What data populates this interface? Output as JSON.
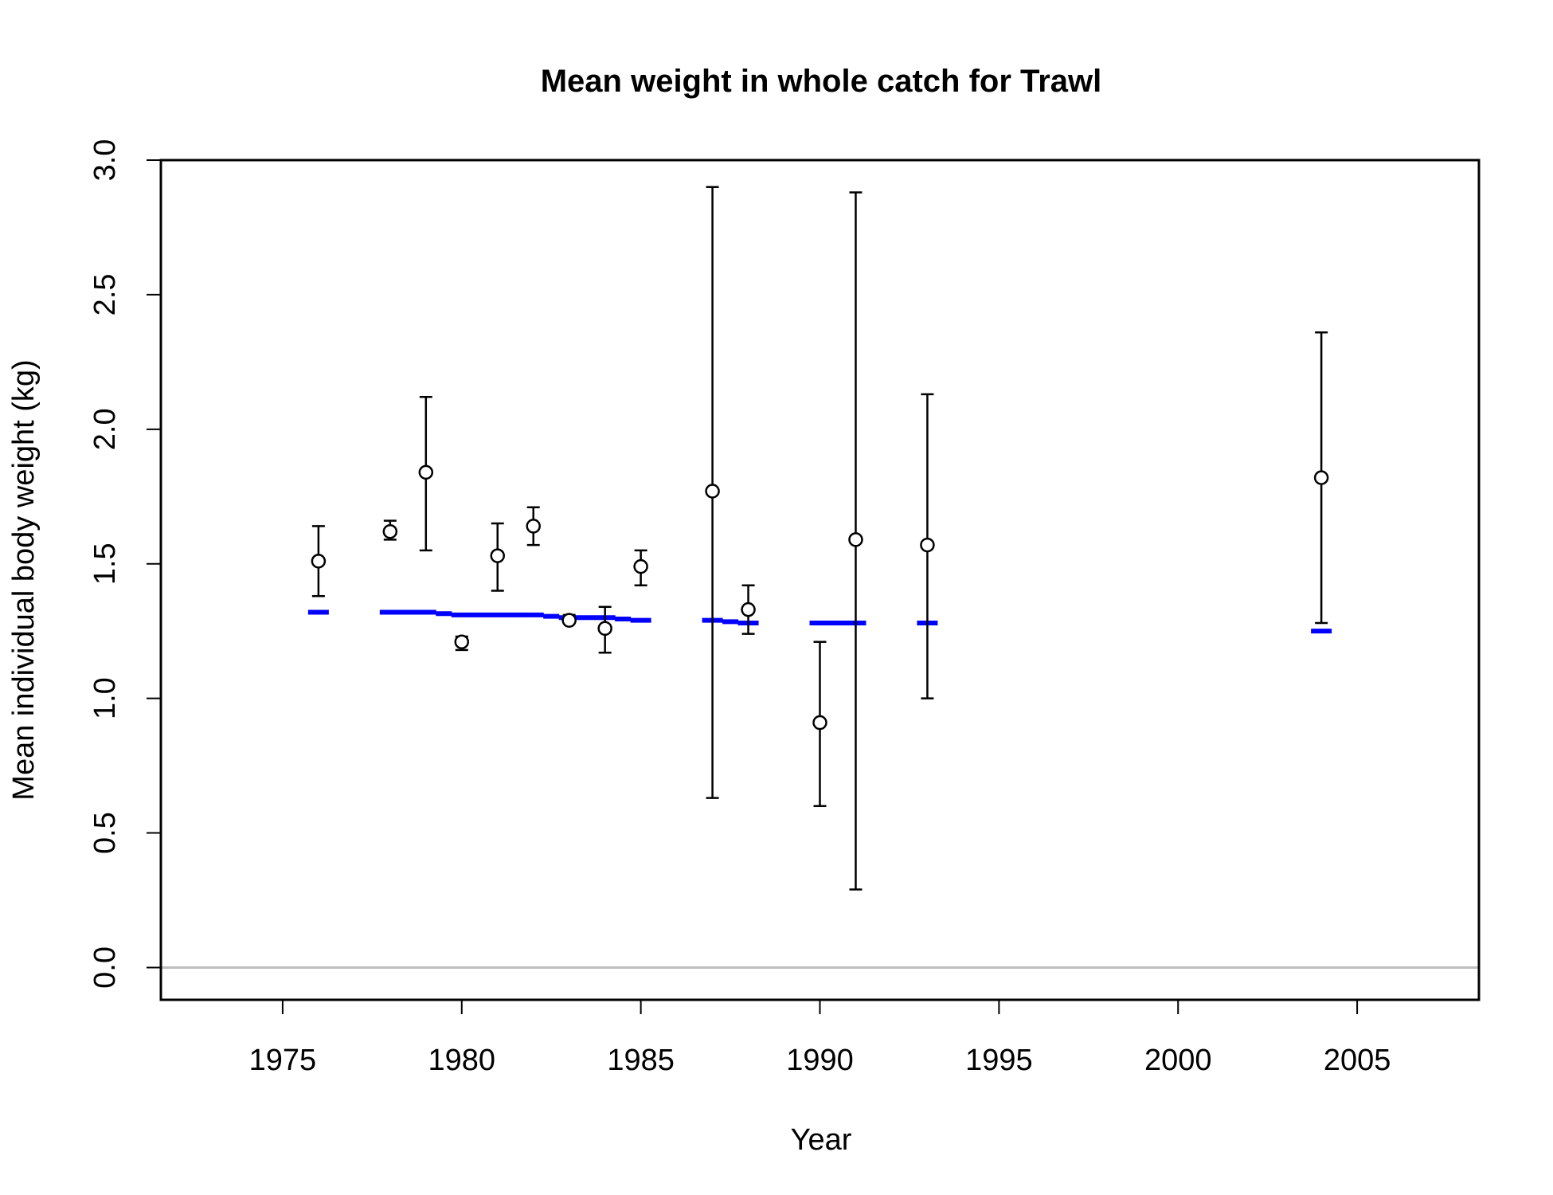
{
  "chart_data": {
    "type": "scatter",
    "title": "Mean weight in whole catch for Trawl",
    "xlabel": "Year",
    "ylabel": "Mean individual body weight (kg)",
    "xlim": [
      1971.6,
      2008.4
    ],
    "ylim": [
      -0.12,
      3.0
    ],
    "x_ticks": [
      "1975",
      "1980",
      "1985",
      "1990",
      "1995",
      "2000",
      "2005"
    ],
    "y_ticks": [
      "0.0",
      "0.5",
      "1.0",
      "1.5",
      "2.0",
      "2.5",
      "3.0"
    ],
    "reference_line": {
      "y": 0.0,
      "color": "#bebebe"
    },
    "series": [
      {
        "kind": "observed",
        "color": "#000000",
        "points": [
          {
            "x": 1976,
            "y": 1.51,
            "lower": 1.38,
            "upper": 1.64
          },
          {
            "x": 1978,
            "y": 1.62,
            "lower": 1.59,
            "upper": 1.66
          },
          {
            "x": 1979,
            "y": 1.84,
            "lower": 1.55,
            "upper": 2.12
          },
          {
            "x": 1980,
            "y": 1.21,
            "lower": 1.18,
            "upper": 1.23
          },
          {
            "x": 1981,
            "y": 1.53,
            "lower": 1.4,
            "upper": 1.65
          },
          {
            "x": 1982,
            "y": 1.64,
            "lower": 1.57,
            "upper": 1.71
          },
          {
            "x": 1983,
            "y": 1.29,
            "lower": 1.28,
            "upper": 1.31
          },
          {
            "x": 1984,
            "y": 1.26,
            "lower": 1.17,
            "upper": 1.34
          },
          {
            "x": 1985,
            "y": 1.49,
            "lower": 1.42,
            "upper": 1.55
          },
          {
            "x": 1987,
            "y": 1.77,
            "lower": 0.63,
            "upper": 2.9
          },
          {
            "x": 1988,
            "y": 1.33,
            "lower": 1.24,
            "upper": 1.42
          },
          {
            "x": 1990,
            "y": 0.91,
            "lower": 0.6,
            "upper": 1.21
          },
          {
            "x": 1991,
            "y": 1.59,
            "lower": 0.29,
            "upper": 2.88
          },
          {
            "x": 1993,
            "y": 1.57,
            "lower": 1.0,
            "upper": 2.13
          },
          {
            "x": 2004,
            "y": 1.82,
            "lower": 1.28,
            "upper": 2.36
          }
        ]
      },
      {
        "kind": "expected",
        "color": "#0000ff",
        "points": [
          {
            "x": 1976,
            "y": 1.32
          },
          {
            "x": 1978,
            "y": 1.32
          },
          {
            "x": 1979,
            "y": 1.32
          },
          {
            "x": 1980,
            "y": 1.31
          },
          {
            "x": 1981,
            "y": 1.31
          },
          {
            "x": 1982,
            "y": 1.31
          },
          {
            "x": 1983,
            "y": 1.3
          },
          {
            "x": 1984,
            "y": 1.3
          },
          {
            "x": 1985,
            "y": 1.29
          },
          {
            "x": 1987,
            "y": 1.29
          },
          {
            "x": 1988,
            "y": 1.28
          },
          {
            "x": 1990,
            "y": 1.28
          },
          {
            "x": 1991,
            "y": 1.28
          },
          {
            "x": 1993,
            "y": 1.28
          },
          {
            "x": 2004,
            "y": 1.25
          }
        ]
      }
    ]
  }
}
